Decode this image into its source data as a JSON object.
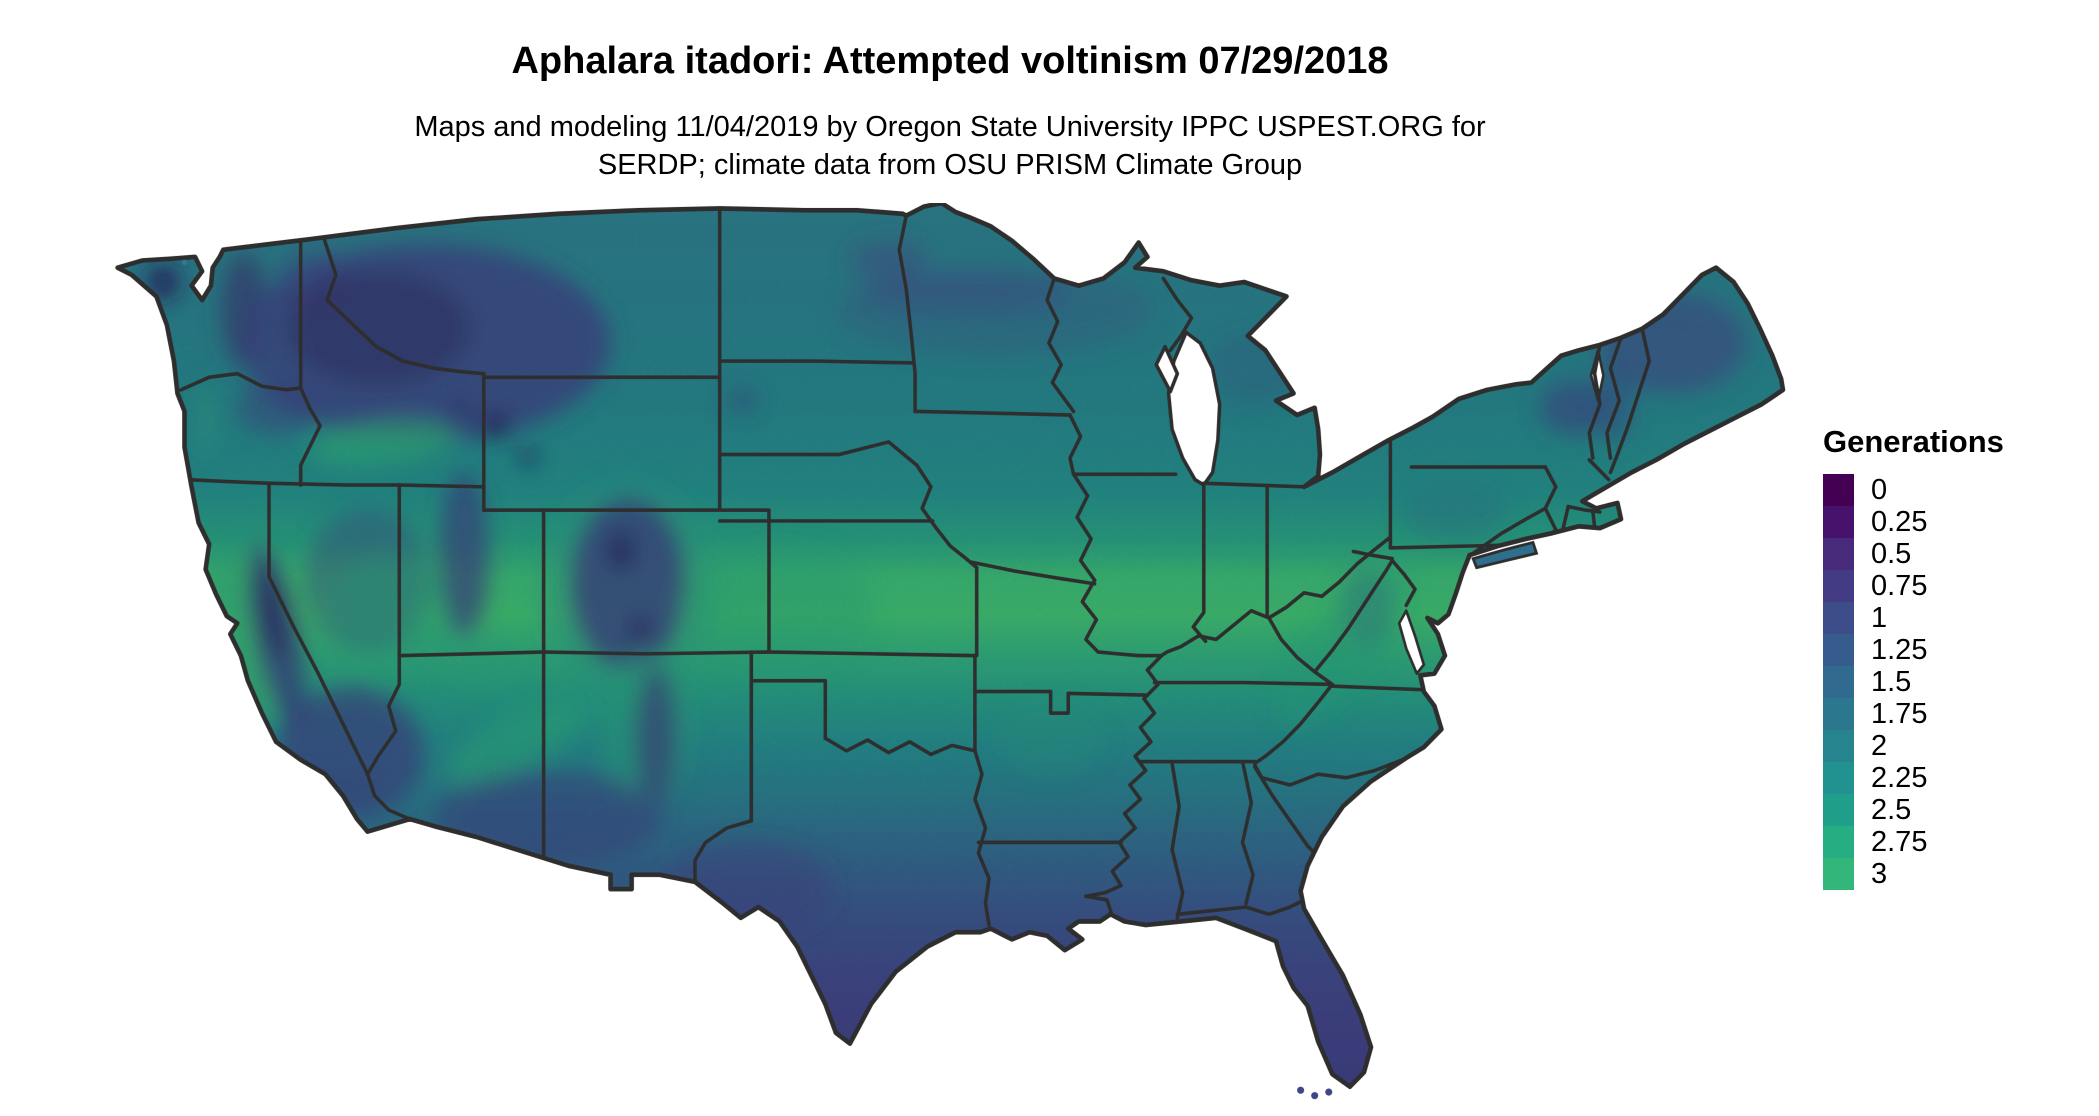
{
  "header": {
    "title": "Aphalara itadori: Attempted voltinism 07/29/2018",
    "subtitle_line1": "Maps and modeling 11/04/2019 by Oregon State University IPPC USPEST.ORG for",
    "subtitle_line2": "SERDP; climate data from OSU PRISM Climate Group"
  },
  "legend": {
    "title": "Generations",
    "entries": [
      {
        "label": "0",
        "color": "#440154"
      },
      {
        "label": "0.25",
        "color": "#47126b"
      },
      {
        "label": "0.5",
        "color": "#472a7a"
      },
      {
        "label": "0.75",
        "color": "#433c84"
      },
      {
        "label": "1",
        "color": "#3d4d8a"
      },
      {
        "label": "1.25",
        "color": "#365c8d"
      },
      {
        "label": "1.5",
        "color": "#306a8e"
      },
      {
        "label": "1.75",
        "color": "#2a778e"
      },
      {
        "label": "2",
        "color": "#25848e"
      },
      {
        "label": "2.25",
        "color": "#219290"
      },
      {
        "label": "2.5",
        "color": "#1f9e89"
      },
      {
        "label": "2.75",
        "color": "#26ad81"
      },
      {
        "label": "3",
        "color": "#32b67a"
      }
    ]
  },
  "map": {
    "border_color": "#2e2e2e",
    "water_color": "#ffffff",
    "band_green": "#40bd72",
    "south_indigo": "#3e4086",
    "north_teal": "#2f7e8e"
  }
}
